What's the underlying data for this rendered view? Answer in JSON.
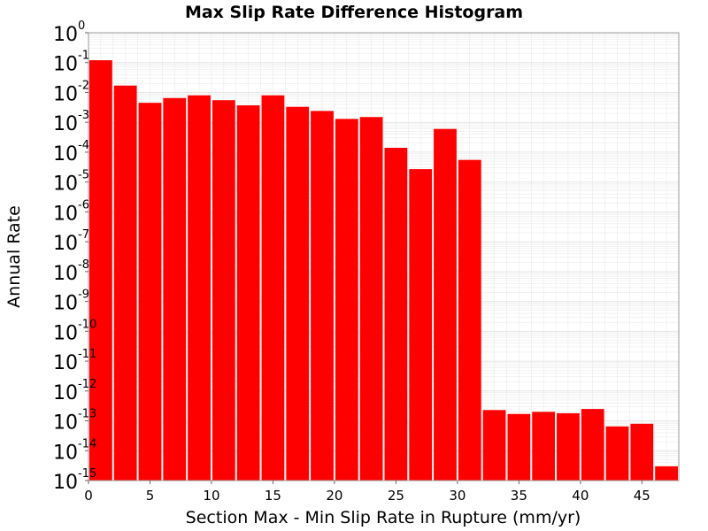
{
  "chart_data": {
    "type": "bar",
    "title": "Max Slip Rate Difference Histogram",
    "xlabel": "Section Max - Min Slip Rate in Rupture (mm/yr)",
    "ylabel": "Annual Rate",
    "yscale": "log",
    "ylim": [
      1e-15,
      1
    ],
    "xlim": [
      0,
      48
    ],
    "bin_width": 2,
    "grid": true,
    "colors": {
      "bar": "#ff0000",
      "bar_edge": "#ffffff",
      "grid": "#e6e6e6",
      "frame": "#999999"
    },
    "x_ticks": [
      0,
      5,
      10,
      15,
      20,
      25,
      30,
      35,
      40,
      45
    ],
    "y_tick_base": "10",
    "y_tick_exponents": [
      "0",
      "-1",
      "-2",
      "-3",
      "-4",
      "-5",
      "-6",
      "-7",
      "-8",
      "-9",
      "-10",
      "-11",
      "-12",
      "-13",
      "-14",
      "-15"
    ],
    "bins": [
      {
        "x": 1,
        "value": 0.12
      },
      {
        "x": 3,
        "value": 0.017
      },
      {
        "x": 5,
        "value": 0.0045
      },
      {
        "x": 7,
        "value": 0.0065
      },
      {
        "x": 9,
        "value": 0.008
      },
      {
        "x": 11,
        "value": 0.0055
      },
      {
        "x": 13,
        "value": 0.0037
      },
      {
        "x": 15,
        "value": 0.008
      },
      {
        "x": 17,
        "value": 0.0033
      },
      {
        "x": 19,
        "value": 0.0024
      },
      {
        "x": 21,
        "value": 0.0013
      },
      {
        "x": 23,
        "value": 0.0015
      },
      {
        "x": 25,
        "value": 0.00014
      },
      {
        "x": 27,
        "value": 2.7e-05
      },
      {
        "x": 29,
        "value": 0.0006
      },
      {
        "x": 31,
        "value": 5.5e-05
      },
      {
        "x": 33,
        "value": 2.3e-13
      },
      {
        "x": 35,
        "value": 1.7e-13
      },
      {
        "x": 37,
        "value": 2e-13
      },
      {
        "x": 39,
        "value": 1.8e-13
      },
      {
        "x": 41,
        "value": 2.5e-13
      },
      {
        "x": 43,
        "value": 6.5e-14
      },
      {
        "x": 45,
        "value": 8e-14
      },
      {
        "x": 47,
        "value": 3e-15
      }
    ]
  }
}
